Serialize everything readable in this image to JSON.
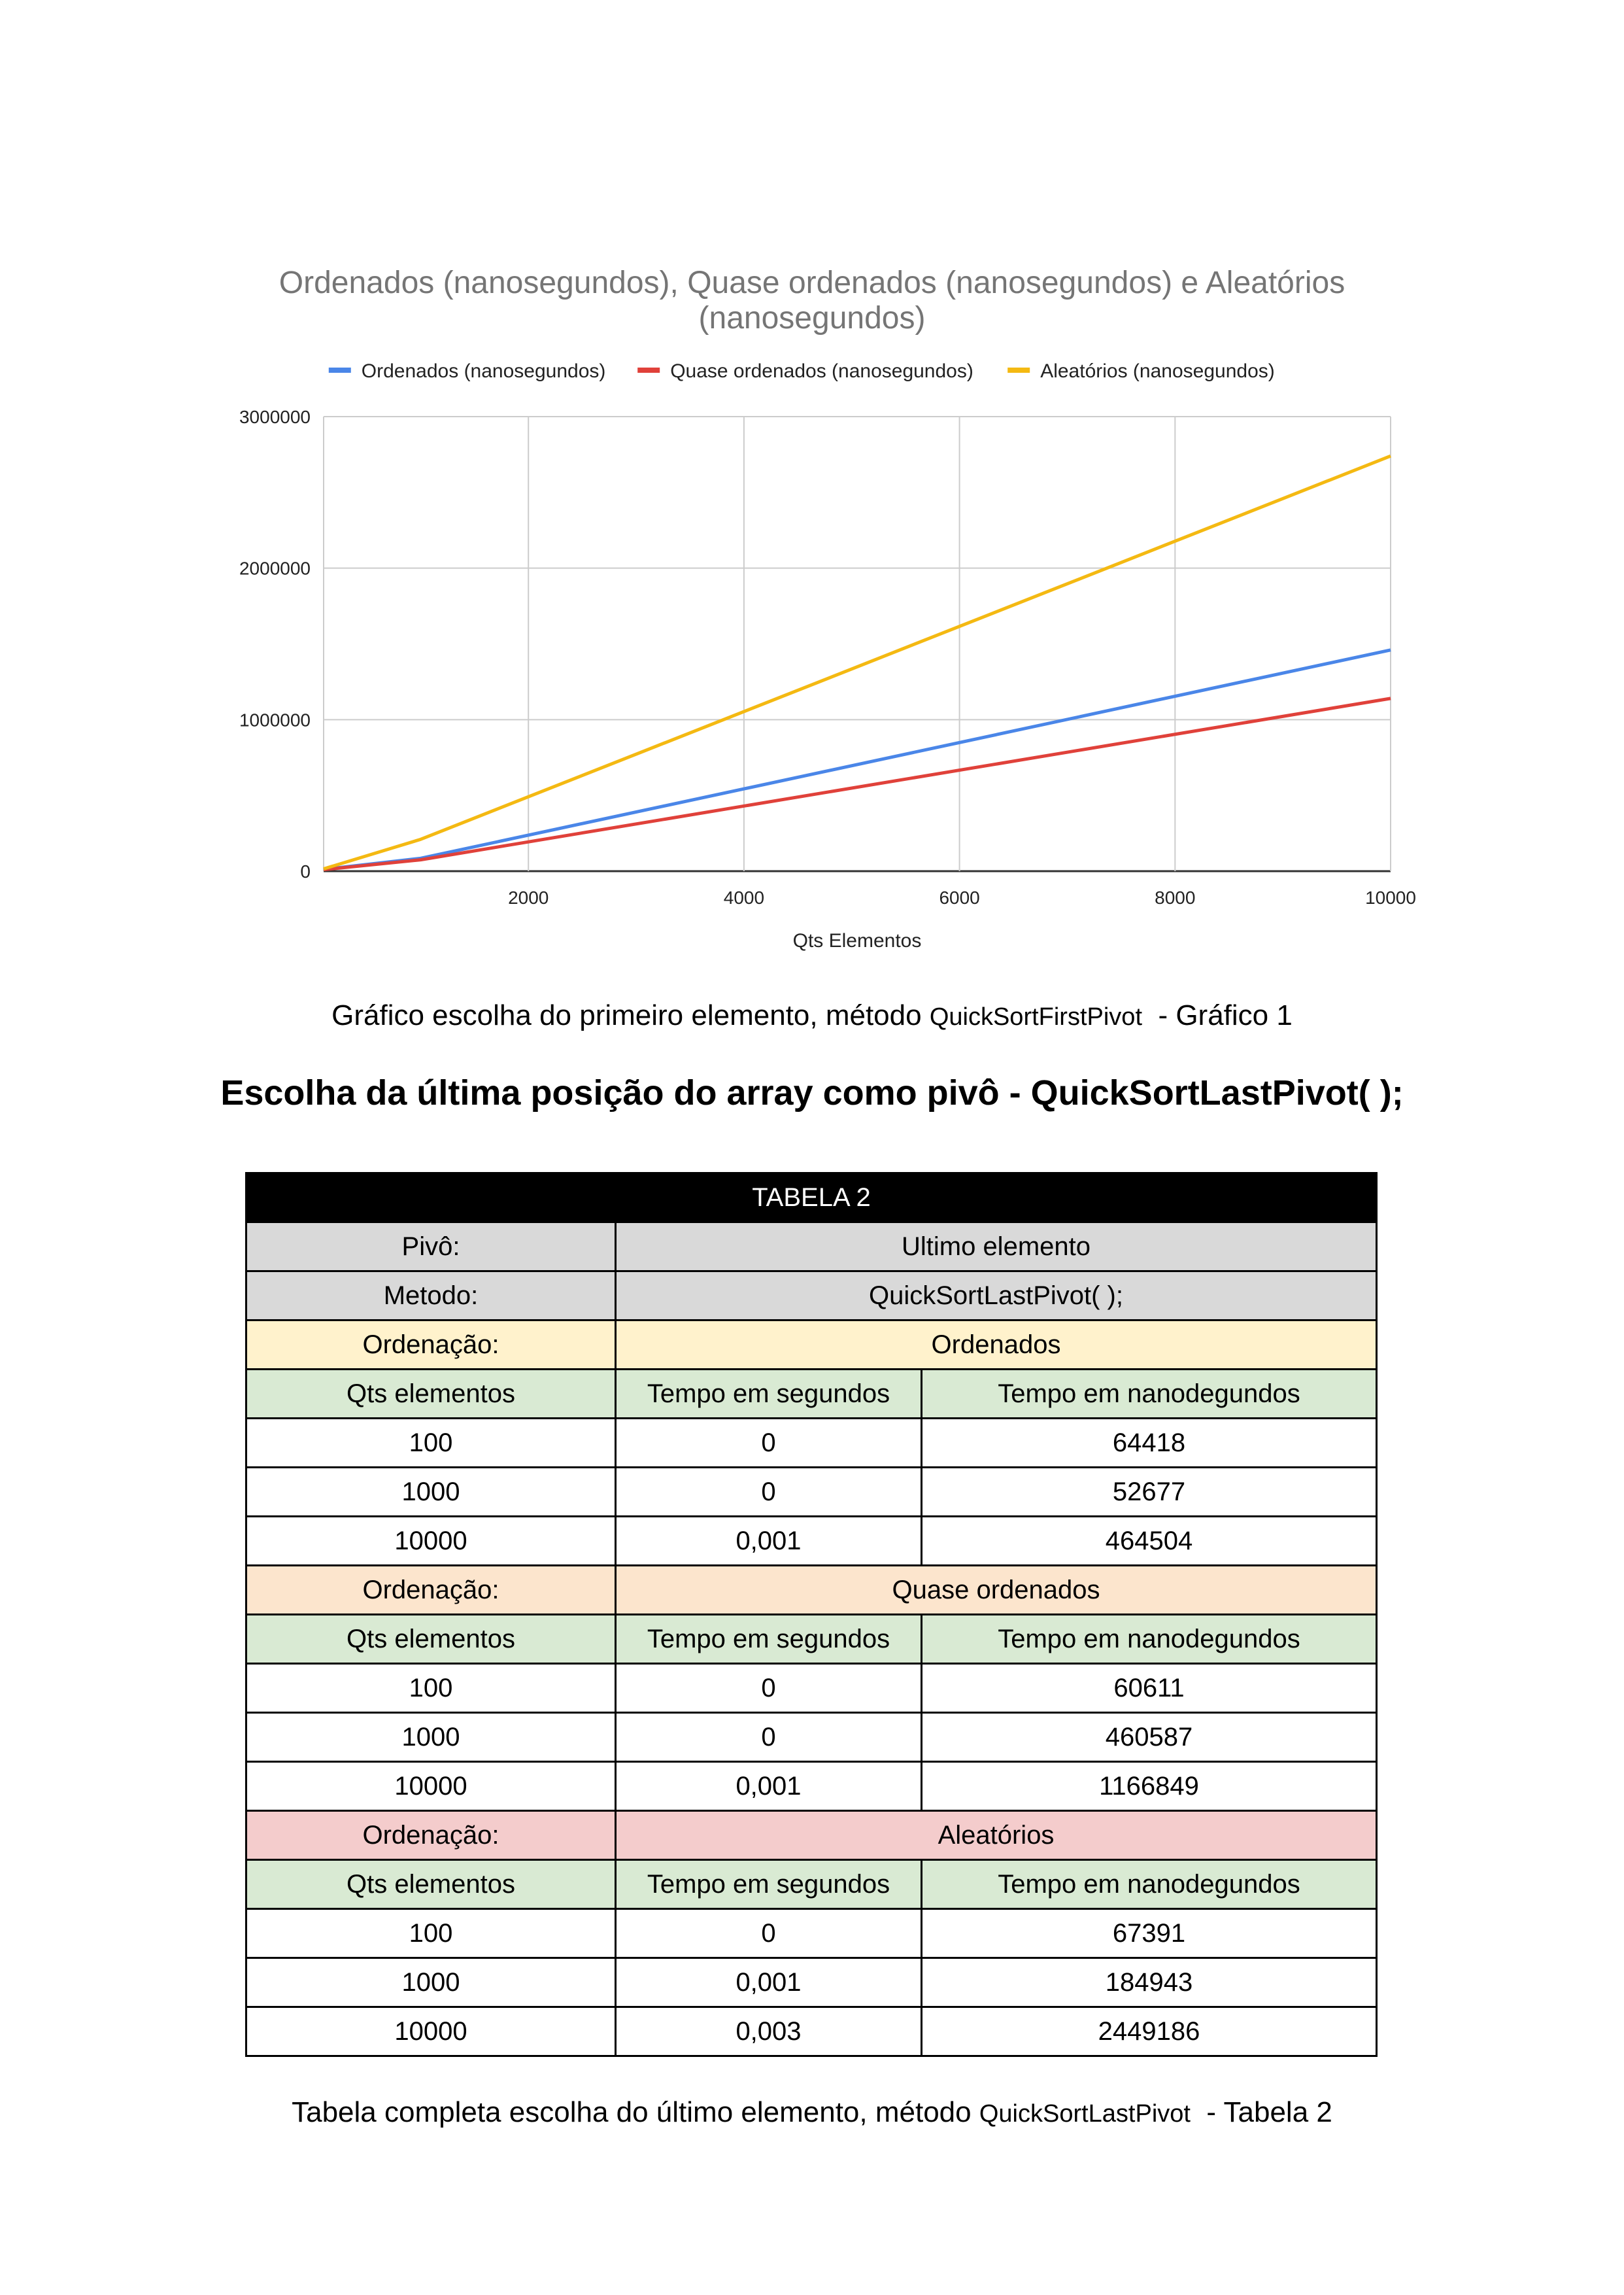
{
  "chart_data": {
    "type": "line",
    "title_line1": "Ordenados (nanosegundos), Quase ordenados (nanosegundos) e Aleatórios",
    "title_line2": "(nanosegundos)",
    "xlabel": "Qts Elementos",
    "ylabel": "",
    "x": [
      100,
      1000,
      10000
    ],
    "xlim": [
      100,
      10000
    ],
    "ylim": [
      0,
      3000000
    ],
    "xticks": [
      2000,
      4000,
      6000,
      8000,
      10000
    ],
    "yticks": [
      0,
      1000000,
      2000000,
      3000000
    ],
    "grid": true,
    "legend_position": "top",
    "series": [
      {
        "name": "Ordenados (nanosegundos)",
        "color": "#4a86e8",
        "values": [
          12000,
          85000,
          1460000
        ]
      },
      {
        "name": "Quase ordenados (nanosegundos)",
        "color": "#e0413a",
        "values": [
          10000,
          75000,
          1140000
        ]
      },
      {
        "name": "Aleatórios (nanosegundos)",
        "color": "#f4b912",
        "values": [
          15000,
          210000,
          2740000
        ]
      }
    ]
  },
  "caption1": {
    "text": "Gráfico escolha do primeiro elemento, método ",
    "method": "QuickSortFirstPivot",
    "suffix": "  - Gráfico 1"
  },
  "heading": "Escolha da última posição do array como pivô - QuickSortLastPivot( );",
  "table": {
    "title": "TABELA 2",
    "pivot_label": "Pivô:",
    "pivot_value": "Ultimo elemento",
    "method_label": "Metodo:",
    "method_value": "QuickSortLastPivot( );",
    "col_headers": [
      "Qts elementos",
      "Tempo em segundos",
      "Tempo em nanodegundos"
    ],
    "sections": [
      {
        "label": "Ordenação:",
        "name": "Ordenados",
        "rows": [
          [
            "100",
            "0",
            "64418"
          ],
          [
            "1000",
            "0",
            "52677"
          ],
          [
            "10000",
            "0,001",
            "464504"
          ]
        ]
      },
      {
        "label": "Ordenação:",
        "name": "Quase ordenados",
        "rows": [
          [
            "100",
            "0",
            "60611"
          ],
          [
            "1000",
            "0",
            "460587"
          ],
          [
            "10000",
            "0,001",
            "1166849"
          ]
        ]
      },
      {
        "label": "Ordenação:",
        "name": "Aleatórios",
        "rows": [
          [
            "100",
            "0",
            "67391"
          ],
          [
            "1000",
            "0,001",
            "184943"
          ],
          [
            "10000",
            "0,003",
            "2449186"
          ]
        ]
      }
    ]
  },
  "caption2": {
    "text": "Tabela completa escolha do último elemento, método ",
    "method": "QuickSortLastPivot",
    "suffix": "  - Tabela 2"
  }
}
